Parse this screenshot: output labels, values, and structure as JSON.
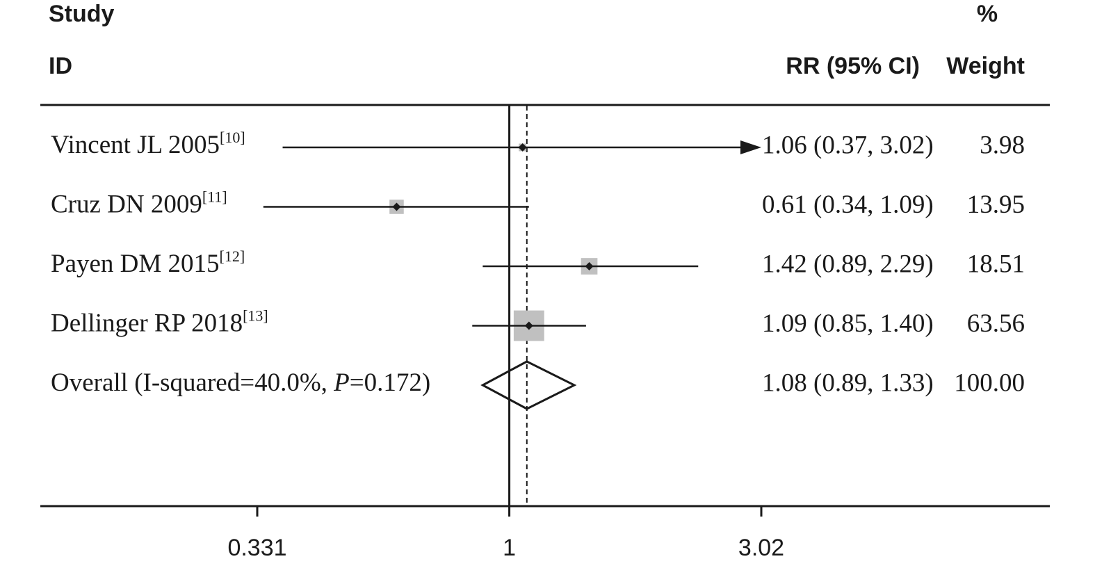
{
  "chart_data": {
    "type": "forest",
    "headers": {
      "study": "Study",
      "id": "ID",
      "ci": "RR (95% CI)",
      "pct": "%",
      "weight": "Weight"
    },
    "log_scale": true,
    "xlim": [
      0.331,
      3.02
    ],
    "xticks": [
      0.331,
      1,
      3.02
    ],
    "null_value": 1,
    "studies": [
      {
        "name": "Vincent JL 2005",
        "ref": "[10]",
        "rr": 1.06,
        "lo": 0.37,
        "hi": 3.02,
        "ci_label": "1.06 (0.37, 3.02)",
        "weight": 3.98
      },
      {
        "name": "Cruz DN 2009",
        "ref": "[11]",
        "rr": 0.61,
        "lo": 0.34,
        "hi": 1.09,
        "ci_label": "0.61 (0.34, 1.09)",
        "weight": 13.95
      },
      {
        "name": "Payen DM 2015",
        "ref": "[12]",
        "rr": 1.42,
        "lo": 0.89,
        "hi": 2.29,
        "ci_label": "1.42 (0.89, 2.29)",
        "weight": 18.51
      },
      {
        "name": "Dellinger RP 2018",
        "ref": "[13]",
        "rr": 1.09,
        "lo": 0.85,
        "hi": 1.4,
        "ci_label": "1.09 (0.85, 1.40)",
        "weight": 63.56
      }
    ],
    "overall": {
      "label_parts": [
        "Overall  (I-squared=40.0%, ",
        "P",
        "=0.172)"
      ],
      "rr": 1.08,
      "lo": 0.89,
      "hi": 1.33,
      "ci_label": "1.08 (0.89, 1.33)",
      "weight": {
        "value": 100,
        "label": "100.00"
      }
    },
    "square_color": "#c0c0c0"
  }
}
